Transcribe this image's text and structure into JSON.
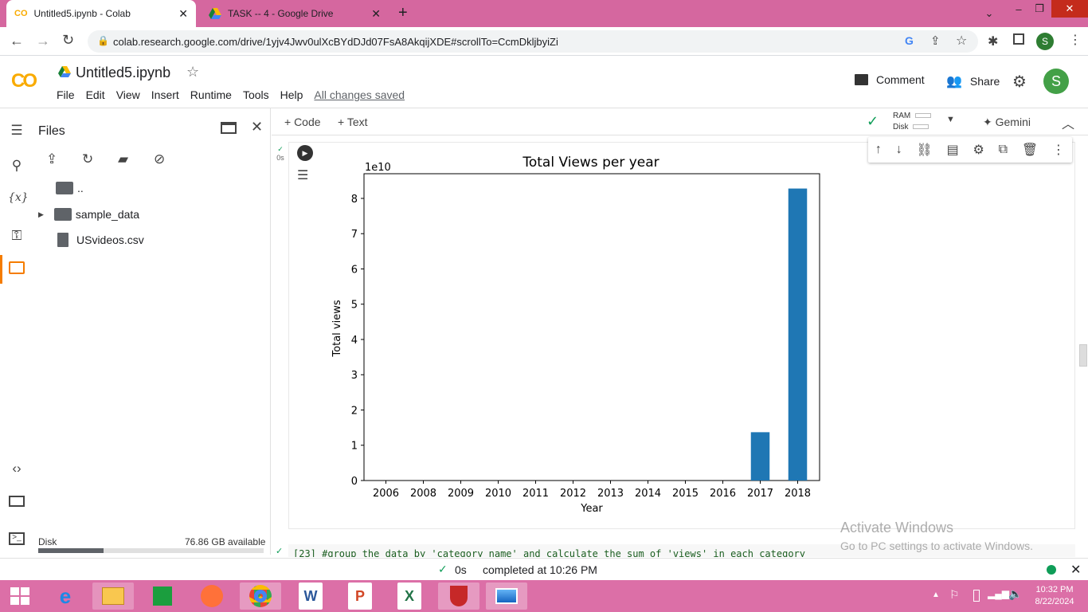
{
  "tabs": [
    {
      "title": "Untitled5.ipynb - Colab"
    },
    {
      "title": "TASK -- 4 - Google Drive"
    }
  ],
  "new_tab": "+",
  "url": "colab.research.google.com/drive/1yjv4Jwv0ulXcBYdDJd07FsA8AkqijXDE#scrollTo=CcmDkljbyiZi",
  "avatar_letter": "S",
  "notebook": {
    "title": "Untitled5.ipynb",
    "menu": [
      "File",
      "Edit",
      "View",
      "Insert",
      "Runtime",
      "Tools",
      "Help"
    ],
    "saved": "All changes saved"
  },
  "header_actions": {
    "comment": "Comment",
    "share": "Share"
  },
  "nb_toolbar": {
    "code": "+ Code",
    "text": "+ Text",
    "ram": "RAM",
    "disk": "Disk",
    "gemini": "Gemini"
  },
  "files": {
    "title": "Files",
    "items": [
      {
        "name": ".."
      },
      {
        "name": "sample_data"
      },
      {
        "name": "USvideos.csv"
      }
    ],
    "disk_label": "Disk",
    "disk_avail": "76.86 GB available",
    "disk_fraction": 0.29
  },
  "cell": {
    "exec_time": "0s",
    "next_code": "[23] #group the data by 'category_name' and calculate the sum of 'views' in each category"
  },
  "chart_data": {
    "type": "bar",
    "title": "Total Views per year",
    "xlabel": "Year",
    "ylabel": "Total views",
    "offset_label": "1e10",
    "categories": [
      "2006",
      "2008",
      "2009",
      "2010",
      "2011",
      "2012",
      "2013",
      "2014",
      "2015",
      "2016",
      "2017",
      "2018"
    ],
    "values": [
      0,
      0,
      0,
      0,
      0,
      0,
      0,
      0,
      0,
      0,
      1.37,
      8.28
    ],
    "yticks": [
      "0",
      "1",
      "2",
      "3",
      "4",
      "5",
      "6",
      "7",
      "8"
    ],
    "ylim": [
      0,
      8.7
    ],
    "color": "#1f77b4"
  },
  "status": {
    "check_time": "0s",
    "completed": "completed at 10:26 PM"
  },
  "watermark": {
    "line1": "Activate Windows",
    "line2": "Go to PC settings to activate Windows."
  },
  "clock": {
    "time": "10:32 PM",
    "date": "8/22/2024"
  }
}
